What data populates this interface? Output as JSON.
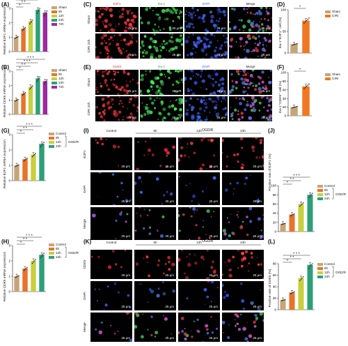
{
  "panel_labels": [
    "(A)",
    "(B)",
    "(C)",
    "(D)",
    "(E)",
    "(F)",
    "(G)",
    "(H)",
    "(I)",
    "(J)",
    "(K)",
    "(L)"
  ],
  "sig": {
    "one": "*",
    "two": "* *",
    "three": "* * *"
  },
  "scale_bar": "25 μm",
  "groups_A": [
    "Sham",
    "6h",
    "12h",
    "24h",
    "72h"
  ],
  "groups_cell": [
    "Control",
    "6h",
    "12h",
    "24h"
  ],
  "ogdr": "OGD/R",
  "colors": {
    "sham": "#c8a576",
    "h6": "#e8732a",
    "h12": "#c8cf3e",
    "h24": "#2da07a",
    "h72": "#9b2b9f",
    "cirisham": "#c8a576",
    "ciri": "#f07822",
    "red": "#e03030",
    "green": "#3fae49",
    "blue": "#3b5bd8"
  },
  "micro_C": {
    "headers": [
      "E2F1",
      "Iba-1",
      "DAPI",
      "Merge"
    ],
    "rows": [
      "Sham",
      "CIRI 24h"
    ]
  },
  "micro_E": {
    "headers": [
      "CDK5",
      "Iba-1",
      "DAPI",
      "Merge"
    ],
    "rows": [
      "Sham",
      "CIRI 24h"
    ]
  },
  "micro_I": {
    "headers": [
      "Control",
      "6h",
      "12h",
      "24h"
    ],
    "rows": [
      "E2F1",
      "DAPI",
      "Merge"
    ]
  },
  "micro_K": {
    "headers": [
      "Control",
      "6h",
      "12h",
      "24h"
    ],
    "rows": [
      "CDK5",
      "DAPI",
      "Merge"
    ]
  },
  "chart_data": [
    {
      "panel": "A",
      "type": "bar",
      "categories": [
        "Sham",
        "6h",
        "12h",
        "24h",
        "72h"
      ],
      "values": [
        1.0,
        1.6,
        2.1,
        2.9,
        2.7
      ],
      "ylabel": "Relative E2F1 mRNA expression",
      "ylim": [
        0,
        3
      ],
      "yticks": [
        0,
        1,
        2,
        3
      ]
    },
    {
      "panel": "B",
      "type": "bar",
      "categories": [
        "Sham",
        "6h",
        "12h",
        "24h",
        "72h"
      ],
      "values": [
        1.0,
        1.45,
        1.9,
        2.5,
        2.3
      ],
      "ylabel": "Relative CDK5 mRNA expression",
      "ylim": [
        0,
        3
      ],
      "yticks": [
        0,
        1,
        2,
        3
      ]
    },
    {
      "panel": "D",
      "type": "bar",
      "categories": [
        "Sham",
        "CIRI"
      ],
      "values": [
        20,
        75
      ],
      "ylabel": "Iba-1⁺E2F1⁺ cell (%)",
      "ylim": [
        0,
        100
      ],
      "yticks": [
        0,
        50,
        100
      ],
      "legend": [
        "Sham",
        "CIRI"
      ]
    },
    {
      "panel": "F",
      "type": "bar",
      "categories": [
        "Sham",
        "CIRI"
      ],
      "values": [
        20,
        68
      ],
      "ylabel": "Iba-1⁺CDK5⁺ cell (%)",
      "ylim": [
        0,
        100
      ],
      "yticks": [
        0,
        20,
        40,
        60,
        80,
        100
      ],
      "legend": [
        "Sham",
        "CIRI"
      ]
    },
    {
      "panel": "G",
      "type": "bar",
      "categories": [
        "Control",
        "6h",
        "12h",
        "24h"
      ],
      "values": [
        1.0,
        1.4,
        1.7,
        2.4
      ],
      "ylabel": "Relative E2F1 mRNA expression",
      "ylim": [
        0,
        3
      ],
      "yticks": [
        0,
        1,
        2,
        3
      ]
    },
    {
      "panel": "H",
      "type": "bar",
      "categories": [
        "Control",
        "6h",
        "12h",
        "24h"
      ],
      "values": [
        1.0,
        1.5,
        2.0,
        2.4
      ],
      "ylabel": "Relative CDK5 mRNA expression",
      "ylim": [
        0,
        3
      ],
      "yticks": [
        0,
        1,
        2,
        3
      ]
    },
    {
      "panel": "J",
      "type": "bar",
      "categories": [
        "Control",
        "6h",
        "12h",
        "24h"
      ],
      "values": [
        17,
        37,
        60,
        80
      ],
      "ylabel": "Positive rate of E2F1 (%)",
      "ylim": [
        0,
        100
      ],
      "yticks": [
        0,
        20,
        40,
        60,
        80,
        100
      ]
    },
    {
      "panel": "L",
      "type": "bar",
      "categories": [
        "Control",
        "6h",
        "12h",
        "24h"
      ],
      "values": [
        17,
        30,
        55,
        78
      ],
      "ylabel": "Positive rate of CDK5 (%)",
      "ylim": [
        0,
        80
      ],
      "yticks": [
        0,
        20,
        40,
        60,
        80
      ]
    }
  ]
}
